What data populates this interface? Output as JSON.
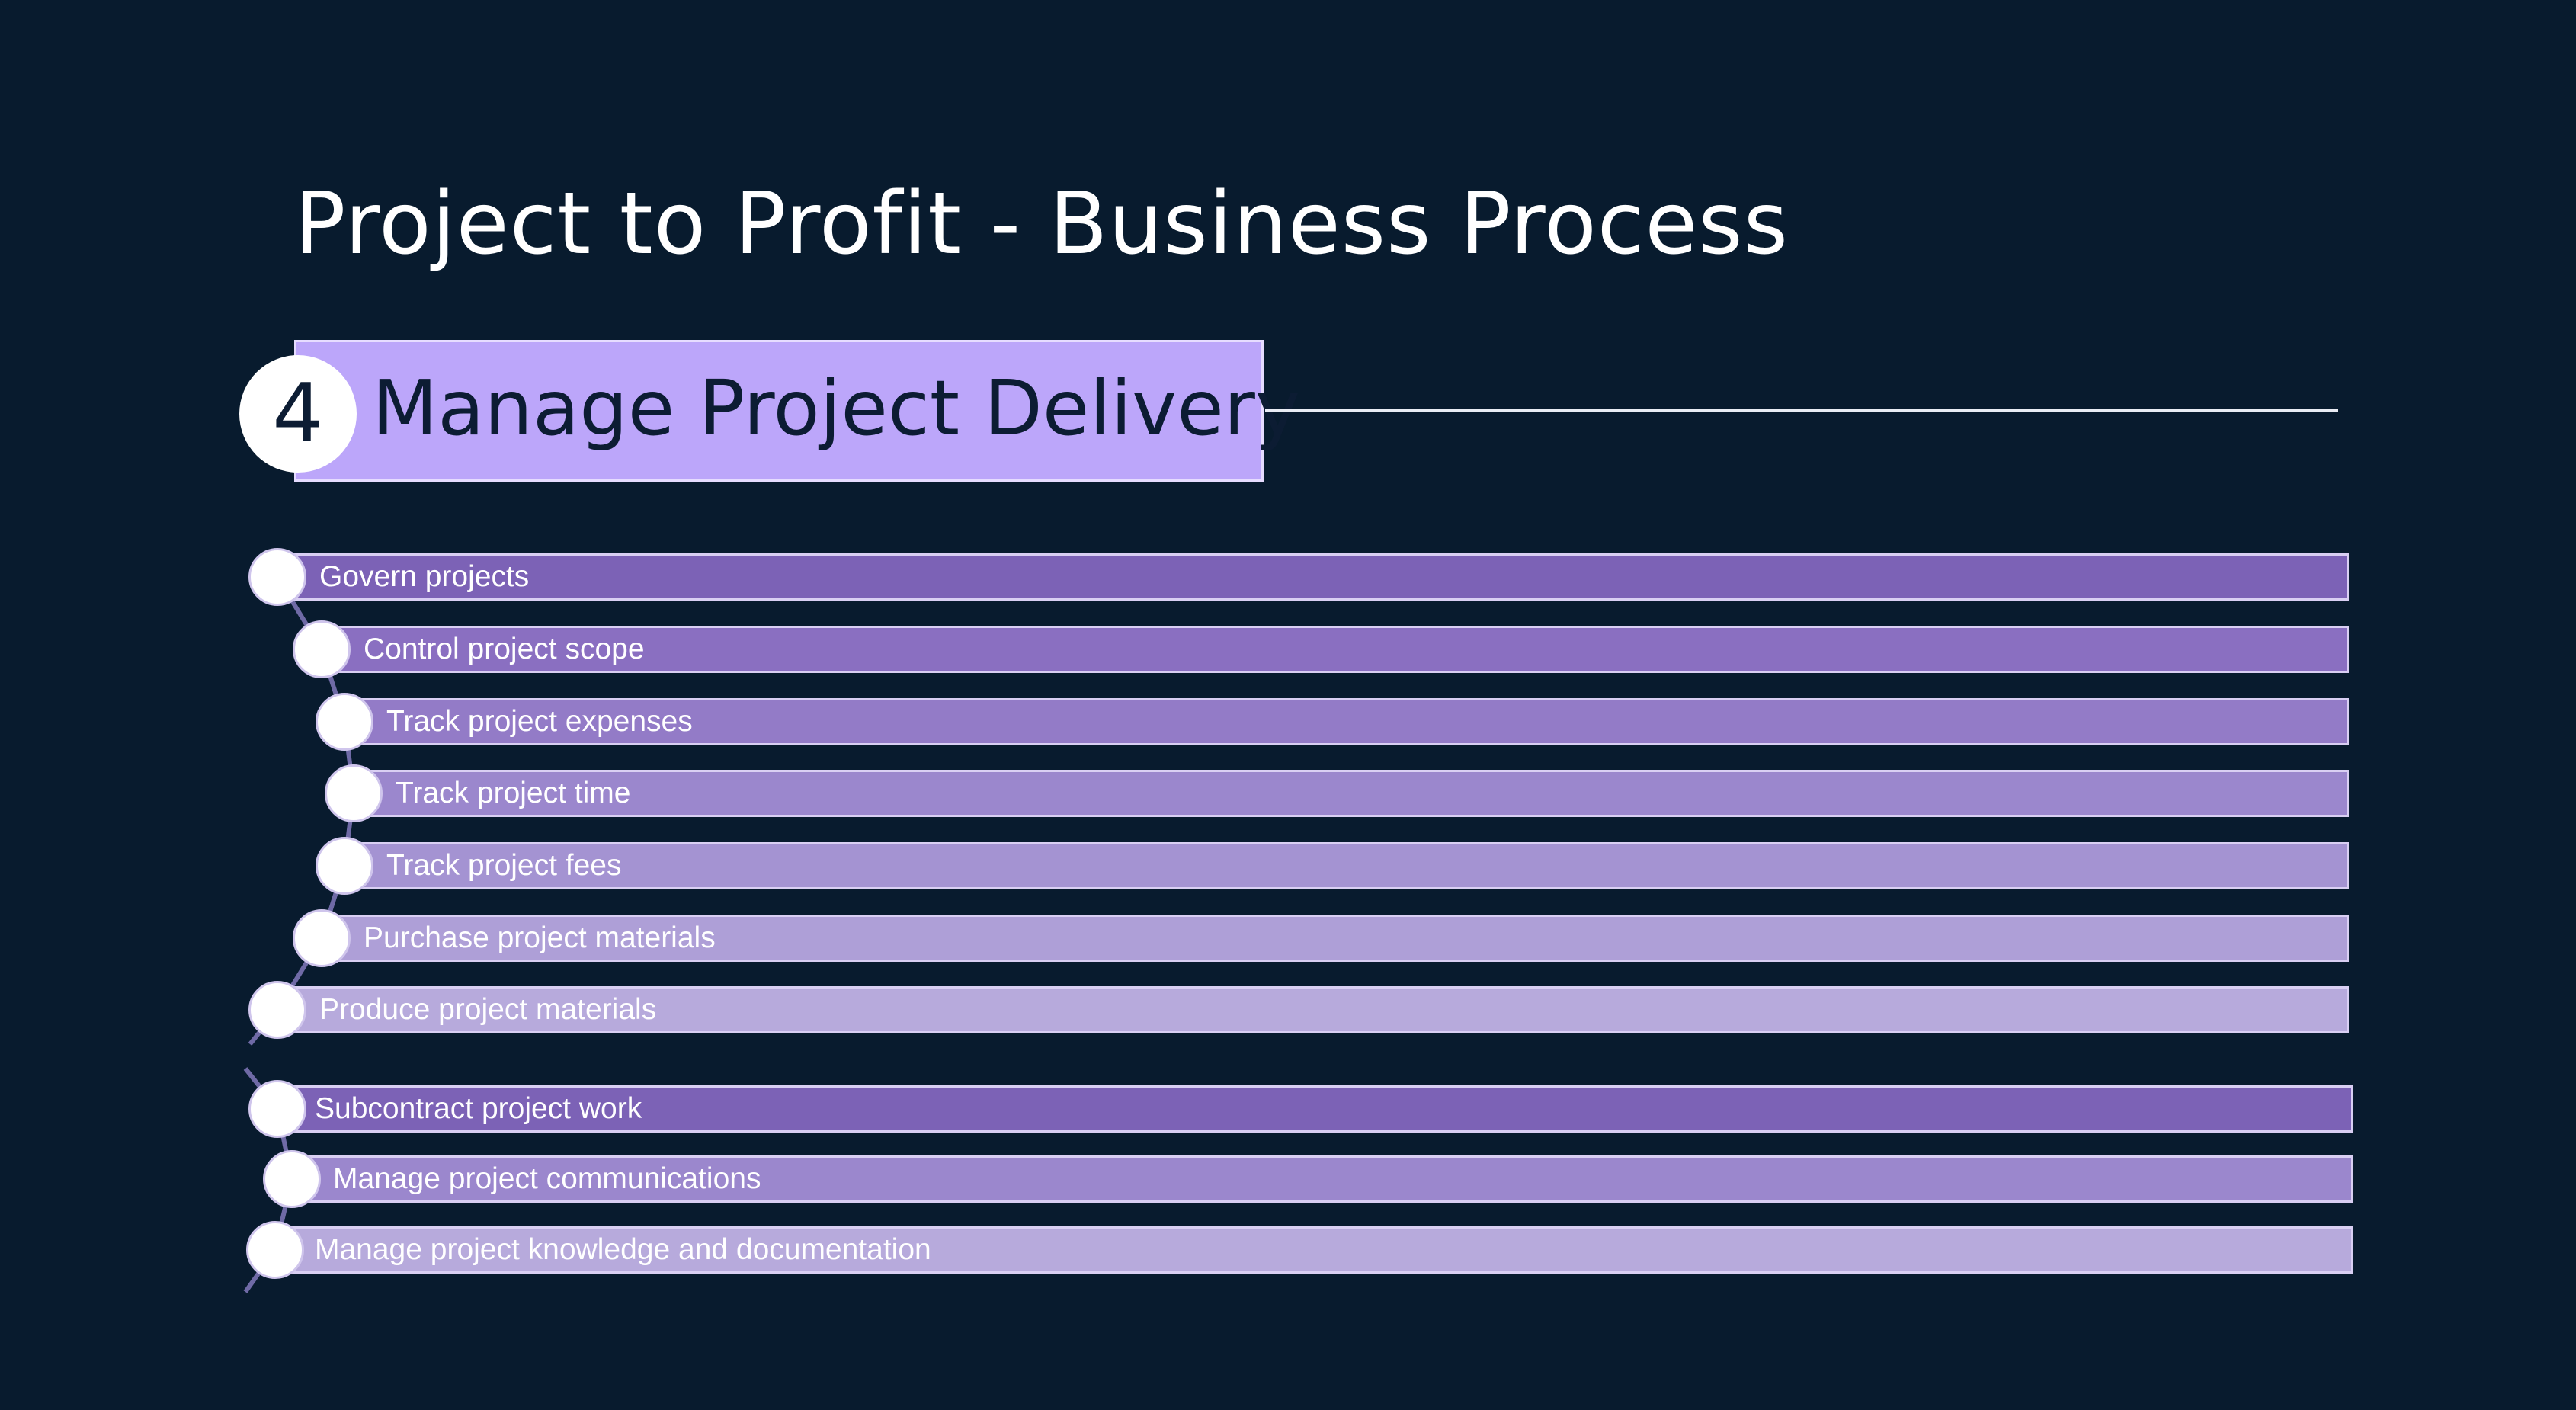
{
  "title": "Project to Profit - Business Process",
  "section": {
    "number": "4",
    "title": "Manage Project Delivery"
  },
  "group1": [
    {
      "label": "Govern projects",
      "color": "#7c62b6"
    },
    {
      "label": "Control project scope",
      "color": "#8a6fc1"
    },
    {
      "label": "Track project expenses",
      "color": "#937bc7"
    },
    {
      "label": "Track project time",
      "color": "#9b87cd"
    },
    {
      "label": "Track project fees",
      "color": "#a493d2"
    },
    {
      "label": "Purchase project materials",
      "color": "#ae9fd7"
    },
    {
      "label": "Produce project materials",
      "color": "#b7aadc"
    }
  ],
  "group2": [
    {
      "label": "Subcontract project work",
      "color": "#7c62b6"
    },
    {
      "label": "Manage project communications",
      "color": "#9b87cd"
    },
    {
      "label": "Manage project knowledge and documentation",
      "color": "#b7aadc"
    }
  ],
  "colors": {
    "background": "#081b2e",
    "accent": "#bca6fa"
  }
}
